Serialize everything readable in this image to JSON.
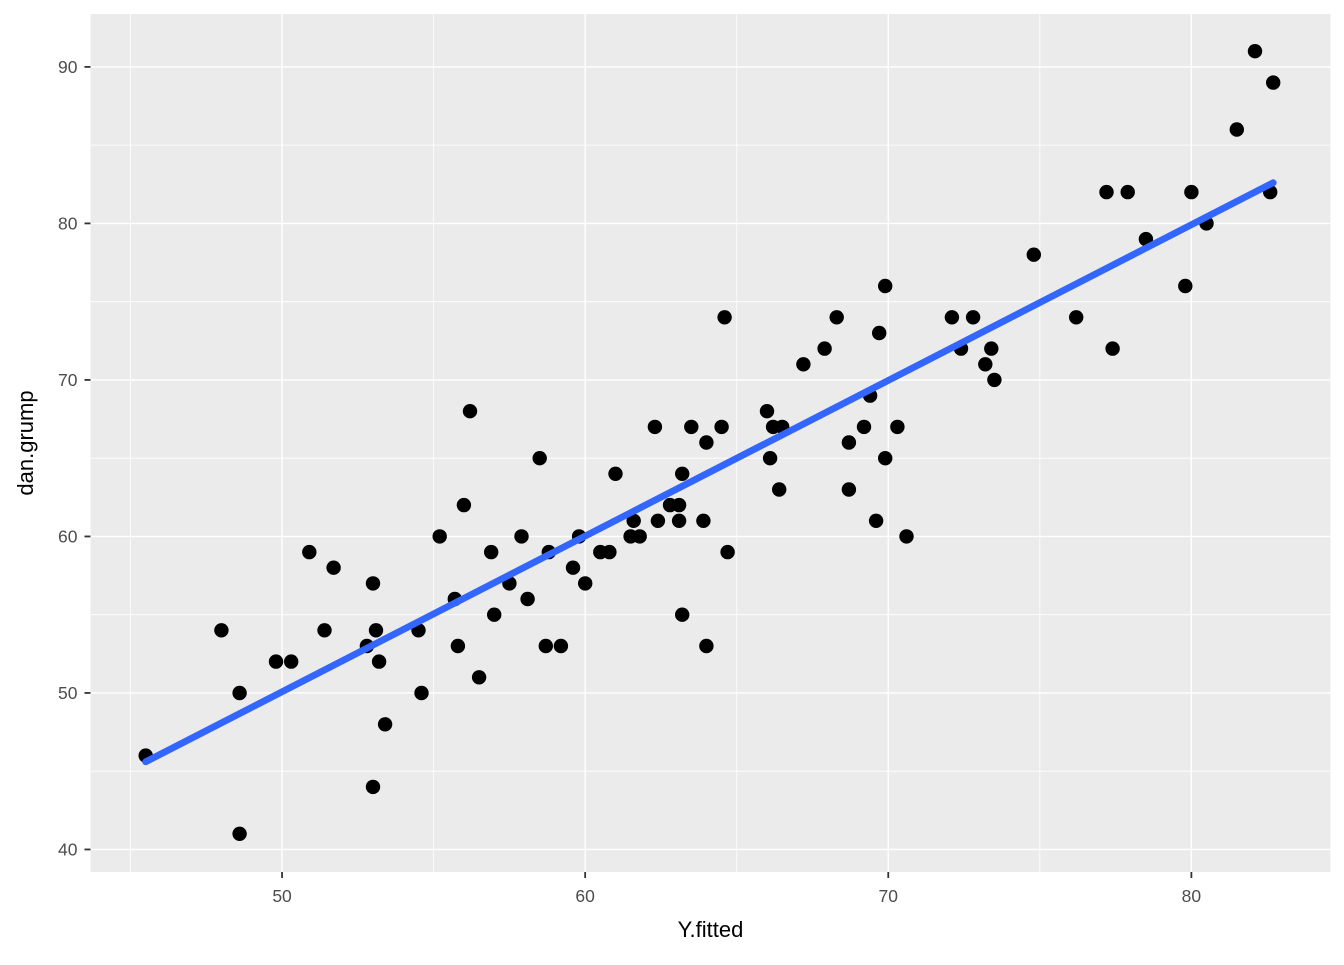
{
  "chart_data": {
    "type": "scatter",
    "title": "",
    "xlabel": "Y.fitted",
    "ylabel": "dan.grump",
    "xlim": [
      43.68,
      84.59
    ],
    "ylim": [
      38.56,
      93.38
    ],
    "x_ticks": [
      50,
      60,
      70,
      80
    ],
    "y_ticks": [
      40,
      50,
      60,
      70,
      80,
      90
    ],
    "x_minor": [
      45,
      55,
      65,
      75
    ],
    "y_minor": [
      45,
      55,
      65,
      75,
      85
    ],
    "grid": "on",
    "legend_position": "none",
    "points": [
      [
        45.5,
        46
      ],
      [
        48.0,
        54
      ],
      [
        48.6,
        41
      ],
      [
        48.6,
        50
      ],
      [
        49.8,
        52
      ],
      [
        50.3,
        52
      ],
      [
        50.9,
        59
      ],
      [
        51.4,
        54
      ],
      [
        51.7,
        58
      ],
      [
        52.8,
        53
      ],
      [
        53.0,
        44
      ],
      [
        53.0,
        57
      ],
      [
        53.1,
        54
      ],
      [
        53.2,
        52
      ],
      [
        53.4,
        48
      ],
      [
        54.5,
        54
      ],
      [
        54.6,
        50
      ],
      [
        55.2,
        60
      ],
      [
        55.7,
        56
      ],
      [
        55.8,
        53
      ],
      [
        56.0,
        62
      ],
      [
        56.2,
        68
      ],
      [
        56.5,
        51
      ],
      [
        56.9,
        59
      ],
      [
        57.0,
        55
      ],
      [
        57.5,
        57
      ],
      [
        57.9,
        60
      ],
      [
        58.1,
        56
      ],
      [
        58.5,
        65
      ],
      [
        58.7,
        53
      ],
      [
        58.8,
        59
      ],
      [
        59.2,
        53
      ],
      [
        59.6,
        58
      ],
      [
        59.8,
        60
      ],
      [
        60.0,
        57
      ],
      [
        60.5,
        59
      ],
      [
        60.8,
        59
      ],
      [
        61.0,
        64
      ],
      [
        61.5,
        60
      ],
      [
        61.6,
        61
      ],
      [
        61.8,
        60
      ],
      [
        62.3,
        67
      ],
      [
        62.4,
        61
      ],
      [
        62.8,
        62
      ],
      [
        63.1,
        61
      ],
      [
        63.1,
        62
      ],
      [
        63.2,
        55
      ],
      [
        63.2,
        64
      ],
      [
        63.5,
        67
      ],
      [
        63.9,
        61
      ],
      [
        64.0,
        53
      ],
      [
        64.0,
        66
      ],
      [
        64.5,
        67
      ],
      [
        64.6,
        74
      ],
      [
        64.7,
        59
      ],
      [
        66.0,
        68
      ],
      [
        66.1,
        65
      ],
      [
        66.2,
        67
      ],
      [
        66.4,
        63
      ],
      [
        66.5,
        67
      ],
      [
        67.2,
        71
      ],
      [
        67.9,
        72
      ],
      [
        68.3,
        74
      ],
      [
        68.7,
        63
      ],
      [
        68.7,
        66
      ],
      [
        69.2,
        67
      ],
      [
        69.4,
        69
      ],
      [
        69.6,
        61
      ],
      [
        69.7,
        73
      ],
      [
        69.9,
        65
      ],
      [
        69.9,
        76
      ],
      [
        70.3,
        67
      ],
      [
        70.6,
        60
      ],
      [
        72.1,
        74
      ],
      [
        72.4,
        72
      ],
      [
        72.8,
        74
      ],
      [
        73.2,
        71
      ],
      [
        73.4,
        72
      ],
      [
        73.5,
        70
      ],
      [
        74.8,
        78
      ],
      [
        76.2,
        74
      ],
      [
        77.2,
        82
      ],
      [
        77.4,
        72
      ],
      [
        77.9,
        82
      ],
      [
        78.5,
        79
      ],
      [
        79.8,
        76
      ],
      [
        80.0,
        82
      ],
      [
        80.5,
        80
      ],
      [
        81.5,
        86
      ],
      [
        82.1,
        91
      ],
      [
        82.6,
        82
      ],
      [
        82.7,
        89
      ]
    ],
    "regression_line": {
      "x1": 45.5,
      "y1": 45.6,
      "x2": 82.7,
      "y2": 82.6
    },
    "colors": {
      "panel_bg": "#EBEBEB",
      "grid_major": "#FFFFFF",
      "grid_minor": "#FFFFFF",
      "point": "#000000",
      "line": "#3366FF",
      "tick_mark": "#333333",
      "tick_text": "#4D4D4D",
      "axis_title": "#000000",
      "page_bg": "#FFFFFF"
    }
  }
}
